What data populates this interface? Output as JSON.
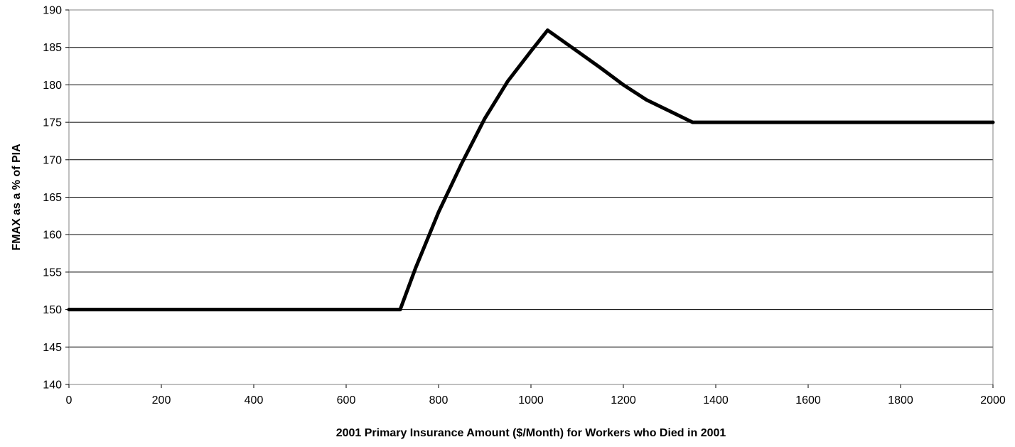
{
  "chart_data": {
    "type": "line",
    "title": "",
    "xlabel": "2001 Primary Insurance Amount ($/Month) for Workers who Died in 2001",
    "ylabel": "FMAX as a % of PIA",
    "xlim": [
      0,
      2000
    ],
    "ylim": [
      140,
      190
    ],
    "x_ticks": [
      0,
      200,
      400,
      600,
      800,
      1000,
      1200,
      1400,
      1600,
      1800,
      2000
    ],
    "y_ticks": [
      140,
      145,
      150,
      155,
      160,
      165,
      170,
      175,
      180,
      185,
      190
    ],
    "grid": "horizontal",
    "legend": "none",
    "series": [
      {
        "color": "#000000",
        "x": [
          0,
          100,
          200,
          300,
          400,
          500,
          600,
          700,
          717,
          750,
          800,
          850,
          900,
          950,
          1000,
          1036,
          1100,
          1150,
          1200,
          1250,
          1300,
          1350,
          1400,
          1500,
          1600,
          1700,
          1800,
          1900,
          2000
        ],
        "y": [
          150,
          150,
          150,
          150,
          150,
          150,
          150,
          150,
          150,
          155.5,
          163,
          169.5,
          175.5,
          180.5,
          184.5,
          187.3,
          184.5,
          182.3,
          180,
          178,
          176.5,
          175,
          175,
          175,
          175,
          175,
          175,
          175,
          175
        ]
      }
    ]
  }
}
